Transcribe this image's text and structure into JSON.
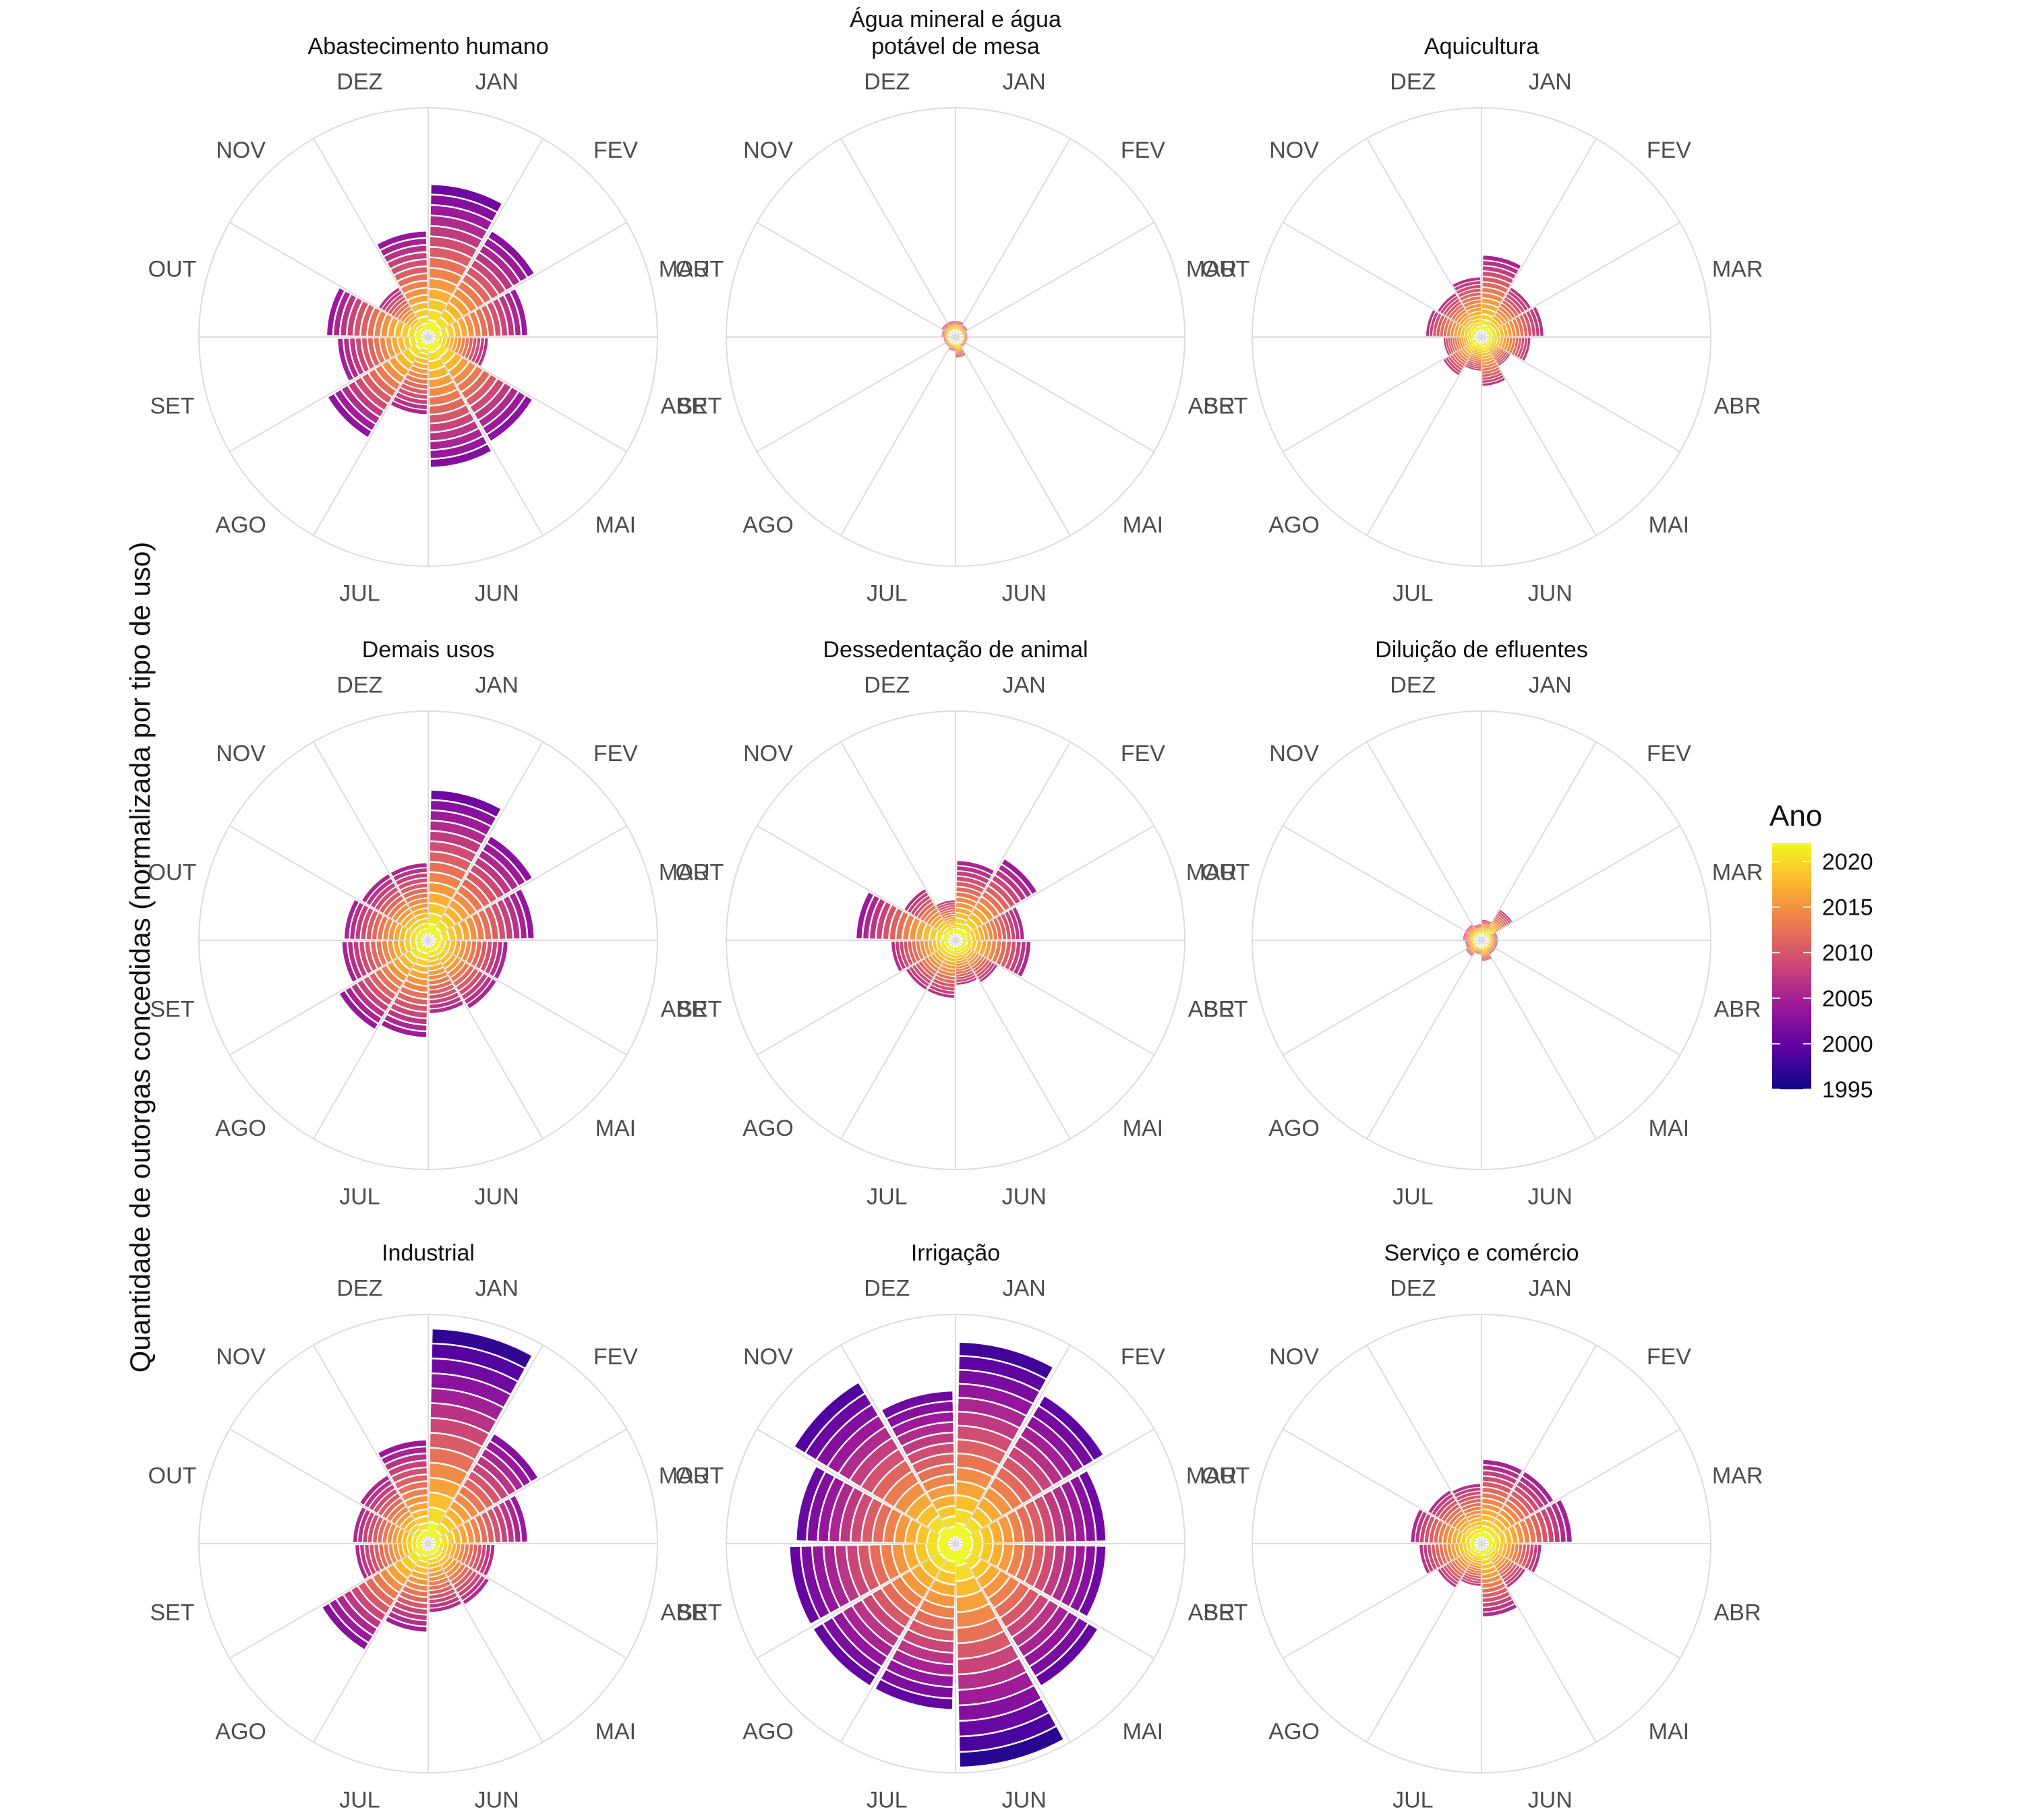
{
  "chart_data": {
    "type": "bar",
    "coord": "polar",
    "ylabel": "Quantidade de outorgas concedidas (normalizada por tipo de uso)",
    "months": [
      "JAN",
      "FEV",
      "MAR",
      "ABR",
      "MAI",
      "JUN",
      "JUL",
      "AGO",
      "SET",
      "OUT",
      "NOV",
      "DEZ"
    ],
    "legend": {
      "title": "Ano",
      "ticks": [
        2020,
        2015,
        2010,
        2005,
        2000,
        1995
      ],
      "range": [
        1995,
        2022
      ],
      "colors": [
        "#0d0887",
        "#5b02a3",
        "#9a179b",
        "#cb4678",
        "#eb7852",
        "#fbb32f",
        "#f0f921"
      ],
      "placement": "right"
    },
    "grid": true,
    "panels": [
      {
        "title": "Abastecimento humano",
        "values": [
          0.66,
          0.53,
          0.42,
          0.24,
          0.52,
          0.56,
          0.32,
          0.5,
          0.38,
          0.43,
          0.23,
          0.45
        ]
      },
      {
        "title": "Água mineral e água\npotável de mesa",
        "values": [
          0.04,
          0.03,
          0.02,
          0.02,
          0.02,
          0.06,
          0.03,
          0.02,
          0.02,
          0.03,
          0.04,
          0.04
        ]
      },
      {
        "title": "Aquicultura",
        "values": [
          0.34,
          0.23,
          0.25,
          0.19,
          0.12,
          0.19,
          0.12,
          0.17,
          0.14,
          0.22,
          0.2,
          0.24
        ]
      },
      {
        "title": "Demais usos",
        "values": [
          0.65,
          0.52,
          0.45,
          0.33,
          0.33,
          0.3,
          0.41,
          0.44,
          0.36,
          0.35,
          0.32,
          0.32
        ]
      },
      {
        "title": "Dessedentação de animal",
        "values": [
          0.33,
          0.4,
          0.28,
          0.31,
          0.19,
          0.17,
          0.23,
          0.23,
          0.26,
          0.42,
          0.24,
          0.15
        ]
      },
      {
        "title": "Diluição de efluentes",
        "values": [
          0.06,
          0.13,
          0.04,
          0.04,
          0.04,
          0.06,
          0.03,
          0.05,
          0.04,
          0.05,
          0.05,
          0.04
        ]
      },
      {
        "title": "Industrial",
        "values": [
          0.94,
          0.55,
          0.42,
          0.27,
          0.29,
          0.28,
          0.37,
          0.53,
          0.3,
          0.31,
          0.33,
          0.44
        ]
      },
      {
        "title": "Irrigação",
        "values": [
          0.88,
          0.75,
          0.65,
          0.65,
          0.72,
          0.98,
          0.72,
          0.72,
          0.72,
          0.69,
          0.82,
          0.66
        ]
      },
      {
        "title": "Serviço e comércio",
        "values": [
          0.35,
          0.35,
          0.38,
          0.24,
          0.2,
          0.3,
          0.16,
          0.2,
          0.25,
          0.29,
          0.25,
          0.24
        ]
      }
    ]
  }
}
